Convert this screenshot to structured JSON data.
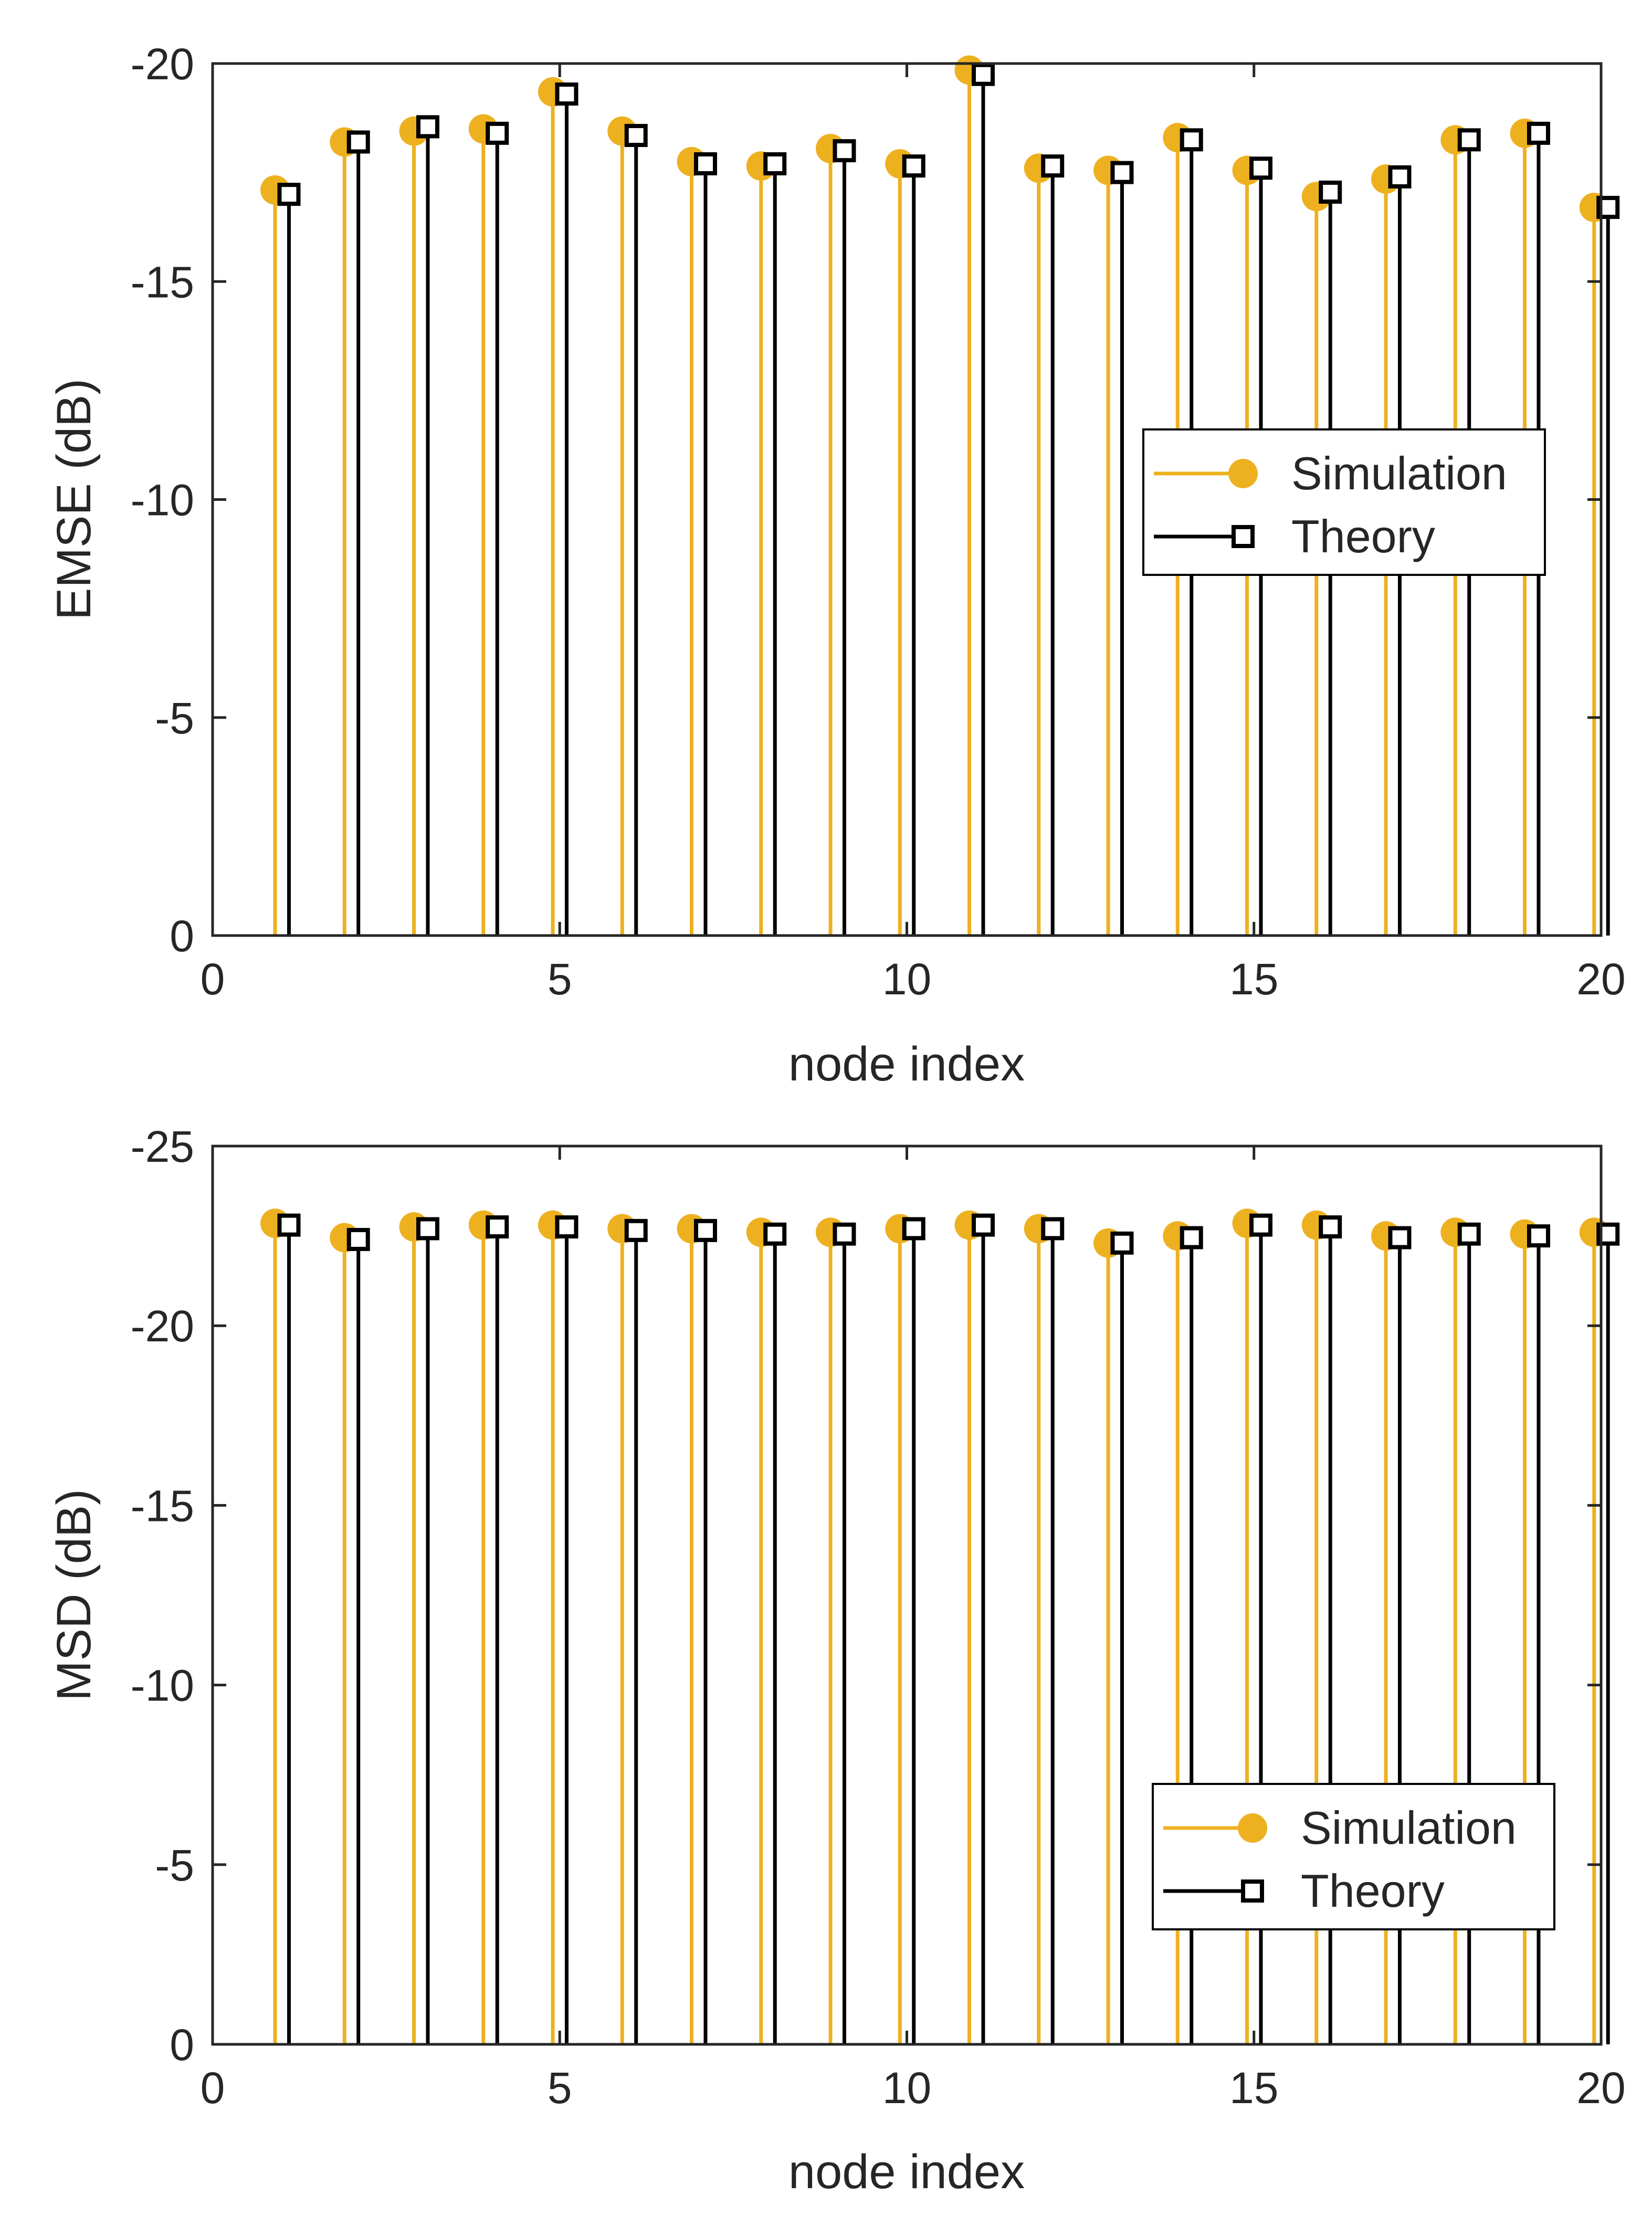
{
  "colors": {
    "simulation": "#EDB120",
    "theory": "#000000",
    "axis": "#262626",
    "background": "#FFFFFF"
  },
  "chart_data": [
    {
      "type": "stem",
      "xlabel": "node index",
      "ylabel": "EMSE (dB)",
      "xlim": [
        0,
        20
      ],
      "ylim": [
        0,
        -20
      ],
      "y_direction": "reversed",
      "xticks": [
        0,
        5,
        10,
        15,
        20
      ],
      "yticks": [
        -20,
        -15,
        -10,
        -5,
        0
      ],
      "legend_position": "center-right",
      "series": [
        {
          "name": "Simulation",
          "marker": "filled-circle",
          "x_offset": -0.1,
          "values": [
            -17.1,
            -18.2,
            -18.45,
            -18.5,
            -19.35,
            -18.45,
            -17.75,
            -17.65,
            -18.05,
            -17.7,
            -19.85,
            -17.6,
            -17.55,
            -18.3,
            -17.55,
            -16.95,
            -17.35,
            -18.25,
            -18.4,
            -16.7
          ]
        },
        {
          "name": "Theory",
          "marker": "open-square",
          "x_offset": 0.1,
          "values": [
            -17.0,
            -18.2,
            -18.55,
            -18.4,
            -19.3,
            -18.35,
            -17.7,
            -17.7,
            -18.0,
            -17.65,
            -19.75,
            -17.65,
            -17.5,
            -18.25,
            -17.6,
            -17.05,
            -17.4,
            -18.25,
            -18.4,
            -16.7
          ]
        }
      ]
    },
    {
      "type": "stem",
      "xlabel": "node index",
      "ylabel": "MSD (dB)",
      "xlim": [
        0,
        20
      ],
      "ylim": [
        0,
        -25
      ],
      "y_direction": "reversed",
      "xticks": [
        0,
        5,
        10,
        15,
        20
      ],
      "yticks": [
        -25,
        -20,
        -15,
        -10,
        -5,
        0
      ],
      "legend_position": "bottom-right",
      "series": [
        {
          "name": "Simulation",
          "marker": "filled-circle",
          "x_offset": -0.1,
          "values": [
            -22.85,
            -22.45,
            -22.75,
            -22.8,
            -22.8,
            -22.7,
            -22.7,
            -22.6,
            -22.6,
            -22.7,
            -22.8,
            -22.7,
            -22.3,
            -22.5,
            -22.85,
            -22.8,
            -22.5,
            -22.6,
            -22.55,
            -22.6
          ]
        },
        {
          "name": "Theory",
          "marker": "open-square",
          "x_offset": 0.1,
          "values": [
            -22.8,
            -22.4,
            -22.7,
            -22.75,
            -22.75,
            -22.65,
            -22.65,
            -22.55,
            -22.55,
            -22.7,
            -22.8,
            -22.7,
            -22.3,
            -22.45,
            -22.8,
            -22.75,
            -22.45,
            -22.55,
            -22.5,
            -22.55
          ]
        }
      ]
    }
  ]
}
